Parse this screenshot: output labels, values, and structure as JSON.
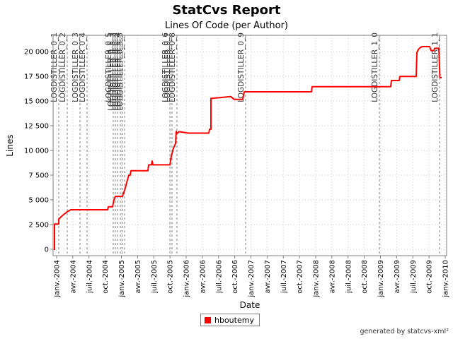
{
  "header": {
    "title": "StatCvs Report",
    "subtitle": "Lines Of Code (per Author)"
  },
  "footer": {
    "credit": "generated by statcvs-xml²"
  },
  "legend": {
    "items": [
      {
        "label": "hboutemy",
        "color": "#FF0000"
      }
    ]
  },
  "colors": {
    "series": "#FF0000",
    "grid": "#C8C8C8",
    "axis": "#808080",
    "border": "#808080",
    "release_line": "#808080",
    "release_label": "#333333",
    "tick_text": "#000000"
  },
  "chart_data": {
    "type": "line",
    "title": "StatCvs Report",
    "subtitle": "Lines Of Code (per Author)",
    "xlabel": "Date",
    "ylabel": "Lines",
    "grid": true,
    "legend_position": "bottom",
    "xlim_years": [
      2003.94,
      2010.06
    ],
    "ylim": [
      0,
      21600
    ],
    "x_ticks": [
      "janv.-2004",
      "avr.-2004",
      "juil.-2004",
      "oct.-2004",
      "janv.-2005",
      "avr.-2005",
      "juil.-2005",
      "oct.-2005",
      "janv.-2006",
      "avr.-2006",
      "juil.-2006",
      "oct.-2006",
      "janv.-2007",
      "avr.-2007",
      "juil.-2007",
      "oct.-2007",
      "janv.-2008",
      "avr.-2008",
      "juil.-2008",
      "oct.-2008",
      "janv.-2009",
      "avr.-2009",
      "juil.-2009",
      "oct.-2009",
      "janv.-2010"
    ],
    "y_ticks": [
      {
        "label": "0",
        "value": 0
      },
      {
        "label": "2 500",
        "value": 2500
      },
      {
        "label": "5 000",
        "value": 5000
      },
      {
        "label": "7 500",
        "value": 7500
      },
      {
        "label": "10 000",
        "value": 10000
      },
      {
        "label": "12 500",
        "value": 12500
      },
      {
        "label": "15 000",
        "value": 15000
      },
      {
        "label": "17 500",
        "value": 17500
      },
      {
        "label": "20 000",
        "value": 20000
      }
    ],
    "release_markers": [
      {
        "label": "LOGDISTILLER_0_1",
        "year": 2004.033
      },
      {
        "label": "LOGDISTILLER_0_2",
        "year": 2004.164
      },
      {
        "label": "LOGDISTILLER_0_3",
        "year": 2004.361
      },
      {
        "label": "LOGDISTILLER_0_4",
        "year": 2004.47
      },
      {
        "label": "LOGDISTILLER_0_5",
        "year": 2004.874
      },
      {
        "label": "LOGDISTILLER_0_5_1",
        "year": 2004.907
      },
      {
        "label": "LOGDISTILLER_0_5_2",
        "year": 2004.94
      },
      {
        "label": "LOGDISTILLER_0_5_3",
        "year": 2004.984
      },
      {
        "label": "LOGDISTILLER_0_5_4",
        "year": 2005.016
      },
      {
        "label": "LOGDISTILLER_0_5_5",
        "year": 2005.049
      },
      {
        "label": "LOGDISTILLER_0_6",
        "year": 2005.749
      },
      {
        "label": "LOGDISTILLER_0_7",
        "year": 2005.781
      },
      {
        "label": "LOGDISTILLER_0_8",
        "year": 2005.858
      },
      {
        "label": "LOGDISTILLER_0_9",
        "year": 2006.918
      },
      {
        "label": "LOGDISTILLER_1_0",
        "year": 2008.984
      },
      {
        "label": "LOGDISTILLER_1_1",
        "year": 2009.913
      }
    ],
    "series": [
      {
        "name": "hboutemy",
        "color": "#FF0000",
        "points": [
          [
            2003.967,
            0
          ],
          [
            2003.967,
            2550
          ],
          [
            2003.978,
            2550
          ],
          [
            2004.033,
            2550
          ],
          [
            2004.033,
            3050
          ],
          [
            2004.087,
            3400
          ],
          [
            2004.164,
            3800
          ],
          [
            2004.219,
            4000
          ],
          [
            2004.787,
            4000
          ],
          [
            2004.798,
            4300
          ],
          [
            2004.863,
            4300
          ],
          [
            2004.885,
            5000
          ],
          [
            2004.907,
            5350
          ],
          [
            2005.016,
            5350
          ],
          [
            2005.06,
            6200
          ],
          [
            2005.093,
            7000
          ],
          [
            2005.115,
            7500
          ],
          [
            2005.137,
            7500
          ],
          [
            2005.148,
            7950
          ],
          [
            2005.41,
            7950
          ],
          [
            2005.421,
            8540
          ],
          [
            2005.464,
            8540
          ],
          [
            2005.475,
            8930
          ],
          [
            2005.486,
            8540
          ],
          [
            2005.749,
            8540
          ],
          [
            2005.77,
            9400
          ],
          [
            2005.803,
            10200
          ],
          [
            2005.836,
            10700
          ],
          [
            2005.847,
            11930
          ],
          [
            2005.858,
            11700
          ],
          [
            2005.891,
            11900
          ],
          [
            2006.033,
            11750
          ],
          [
            2006.35,
            11750
          ],
          [
            2006.361,
            12140
          ],
          [
            2006.383,
            12140
          ],
          [
            2006.383,
            15260
          ],
          [
            2006.689,
            15450
          ],
          [
            2006.743,
            15160
          ],
          [
            2006.874,
            15160
          ],
          [
            2006.896,
            15930
          ],
          [
            2007.934,
            15930
          ],
          [
            2007.945,
            16450
          ],
          [
            2009.158,
            16450
          ],
          [
            2009.169,
            17070
          ],
          [
            2009.29,
            17070
          ],
          [
            2009.301,
            17480
          ],
          [
            2009.552,
            17480
          ],
          [
            2009.563,
            19900
          ],
          [
            2009.585,
            20200
          ],
          [
            2009.607,
            20350
          ],
          [
            2009.64,
            20500
          ],
          [
            2009.76,
            20500
          ],
          [
            2009.782,
            20100
          ],
          [
            2009.825,
            20100
          ],
          [
            2009.836,
            20330
          ],
          [
            2009.902,
            20330
          ],
          [
            2009.918,
            17360
          ],
          [
            2009.934,
            17360
          ]
        ]
      }
    ]
  }
}
